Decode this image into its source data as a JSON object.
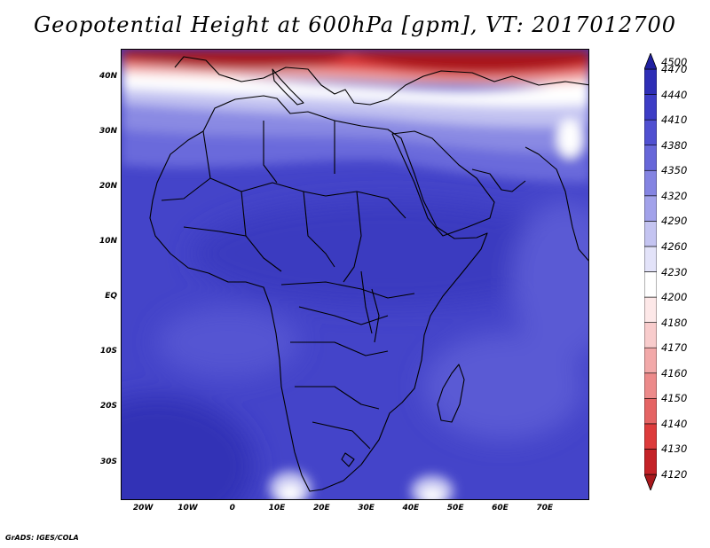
{
  "title": "Geopotential Height at 600hPa [gpm], VT: 2017012700",
  "footer": "GrADS: IGES/COLA",
  "map": {
    "lon_range": [
      -25,
      80
    ],
    "lat_range": [
      -37,
      45
    ],
    "lat_ticks": [
      {
        "value": 40,
        "label": "40N"
      },
      {
        "value": 30,
        "label": "30N"
      },
      {
        "value": 20,
        "label": "20N"
      },
      {
        "value": 10,
        "label": "10N"
      },
      {
        "value": 0,
        "label": "EQ"
      },
      {
        "value": -10,
        "label": "10S"
      },
      {
        "value": -20,
        "label": "20S"
      },
      {
        "value": -30,
        "label": "30S"
      }
    ],
    "lon_ticks": [
      {
        "value": -20,
        "label": "20W"
      },
      {
        "value": -10,
        "label": "10W"
      },
      {
        "value": 0,
        "label": "0"
      },
      {
        "value": 10,
        "label": "10E"
      },
      {
        "value": 20,
        "label": "20E"
      },
      {
        "value": 30,
        "label": "30E"
      },
      {
        "value": 40,
        "label": "40E"
      },
      {
        "value": 50,
        "label": "50E"
      },
      {
        "value": 60,
        "label": "60E"
      },
      {
        "value": 70,
        "label": "70E"
      }
    ]
  },
  "colorbar": {
    "levels": [
      4120,
      4130,
      4140,
      4150,
      4160,
      4170,
      4180,
      4200,
      4230,
      4260,
      4290,
      4320,
      4350,
      4380,
      4410,
      4440,
      4470,
      4500
    ],
    "colors": [
      "#a8181c",
      "#c42227",
      "#dd3b3b",
      "#e56464",
      "#ec8a8a",
      "#f2a9a9",
      "#f8cccc",
      "#fde8e8",
      "#ffffff",
      "#e3e3f9",
      "#c4c4f1",
      "#a2a2ea",
      "#8484e2",
      "#6767d9",
      "#5050d1",
      "#3d3dc6",
      "#2e2eb6",
      "#2020a0"
    ]
  }
}
